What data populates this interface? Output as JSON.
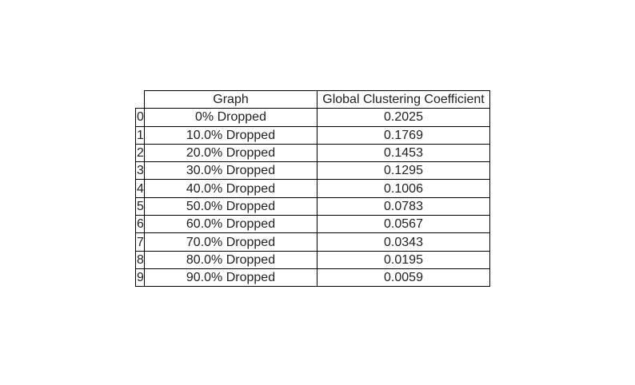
{
  "chart_data": {
    "type": "table",
    "columns": [
      "Graph",
      "Global Clustering Coefficient"
    ],
    "rows": [
      {
        "index": "0",
        "graph": "0% Dropped",
        "gcc": "0.2025"
      },
      {
        "index": "1",
        "graph": "10.0% Dropped",
        "gcc": "0.1769"
      },
      {
        "index": "2",
        "graph": "20.0% Dropped",
        "gcc": "0.1453"
      },
      {
        "index": "3",
        "graph": "30.0% Dropped",
        "gcc": "0.1295"
      },
      {
        "index": "4",
        "graph": "40.0% Dropped",
        "gcc": "0.1006"
      },
      {
        "index": "5",
        "graph": "50.0% Dropped",
        "gcc": "0.0783"
      },
      {
        "index": "6",
        "graph": "60.0% Dropped",
        "gcc": "0.0567"
      },
      {
        "index": "7",
        "graph": "70.0% Dropped",
        "gcc": "0.0343"
      },
      {
        "index": "8",
        "graph": "80.0% Dropped",
        "gcc": "0.0195"
      },
      {
        "index": "9",
        "graph": "90.0% Dropped",
        "gcc": "0.0059"
      }
    ]
  }
}
